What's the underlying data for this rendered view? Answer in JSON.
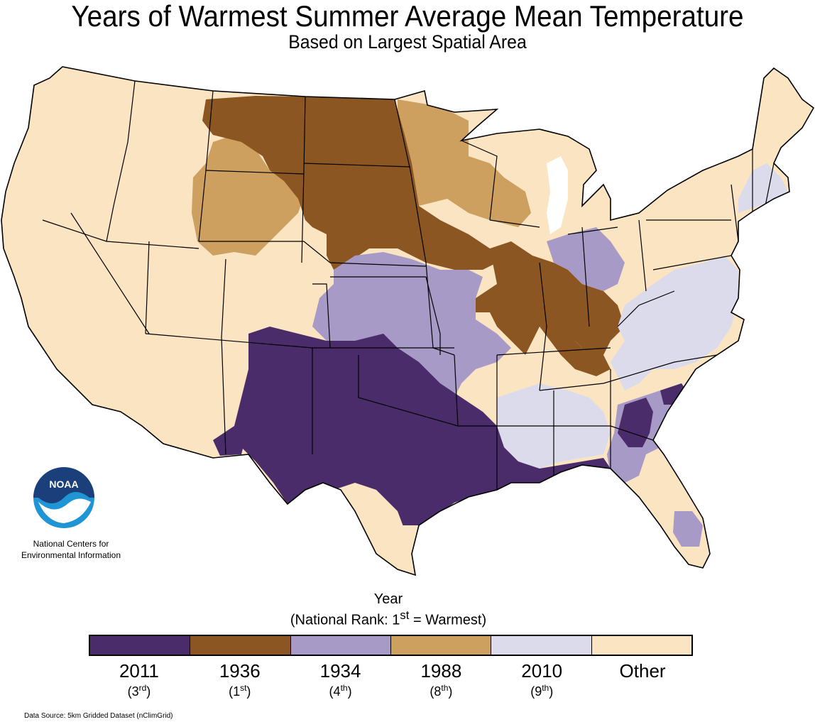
{
  "header": {
    "title": "Years of Warmest Summer Average Mean Temperature",
    "subtitle": "Based on Largest Spatial Area"
  },
  "logo": {
    "text": "NOAA",
    "org_line1": "National Centers for",
    "org_line2": "Environmental Information"
  },
  "legend": {
    "title": "Year",
    "subtitle_prefix": "(National Rank: 1",
    "subtitle_sup": "st",
    "subtitle_suffix": " = Warmest)",
    "items": [
      {
        "year": "2011",
        "rank": "3",
        "rank_sup": "rd",
        "color": "#4b2c6a"
      },
      {
        "year": "1936",
        "rank": "1",
        "rank_sup": "st",
        "color": "#8c5622"
      },
      {
        "year": "1934",
        "rank": "4",
        "rank_sup": "th",
        "color": "#a79ac6"
      },
      {
        "year": "1988",
        "rank": "8",
        "rank_sup": "th",
        "color": "#cda05f"
      },
      {
        "year": "2010",
        "rank": "9",
        "rank_sup": "th",
        "color": "#dcdbec"
      },
      {
        "year": "Other",
        "rank": "",
        "rank_sup": "",
        "color": "#fae4c2"
      }
    ]
  },
  "colors": {
    "y2011": "#4b2c6a",
    "y1936": "#8c5622",
    "y1934": "#a79ac6",
    "y1988": "#cda05f",
    "y2010": "#dcdbec",
    "other": "#fae4c2",
    "noaa_blue": "#1f95d5",
    "noaa_dark": "#1a3f7a"
  },
  "footer": {
    "source": "Data Source: 5km Gridded Dataset (nClimGrid)"
  }
}
